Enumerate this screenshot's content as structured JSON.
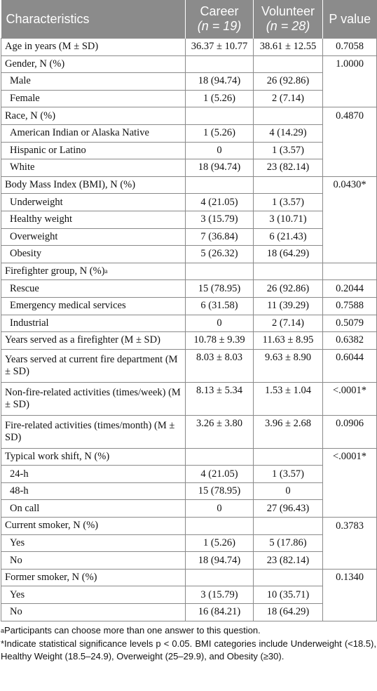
{
  "header": {
    "characteristics": "Characteristics",
    "career": "Career",
    "career_n": "(n = 19)",
    "volunteer": "Volunteer",
    "volunteer_n": "(n = 28)",
    "pvalue": "P value"
  },
  "rows": {
    "age": {
      "label": "Age in years (M ± SD)",
      "career": "36.37 ± 10.77",
      "volunteer": "38.61 ± 12.55",
      "p": "0.7058"
    },
    "gender": {
      "label": "Gender, N (%)",
      "p": "1.0000"
    },
    "male": {
      "label": "Male",
      "career": "18 (94.74)",
      "volunteer": "26 (92.86)"
    },
    "female": {
      "label": "Female",
      "career": "1 (5.26)",
      "volunteer": "2 (7.14)"
    },
    "race": {
      "label": "Race, N (%)",
      "p": "0.4870"
    },
    "aian": {
      "label": "American Indian or Alaska Native",
      "career": "1 (5.26)",
      "volunteer": "4 (14.29)"
    },
    "hispanic": {
      "label": "Hispanic or Latino",
      "career": "0",
      "volunteer": "1 (3.57)"
    },
    "white": {
      "label": "White",
      "career": "18 (94.74)",
      "volunteer": "23 (82.14)"
    },
    "bmi": {
      "label": "Body Mass Index (BMI), N (%)",
      "p": "0.0430*"
    },
    "underweight": {
      "label": "Underweight",
      "career": "4 (21.05)",
      "volunteer": "1 (3.57)"
    },
    "healthy": {
      "label": "Healthy weight",
      "career": "3 (15.79)",
      "volunteer": "3 (10.71)"
    },
    "overweight": {
      "label": "Overweight",
      "career": "7 (36.84)",
      "volunteer": "6 (21.43)"
    },
    "obesity": {
      "label": "Obesity",
      "career": "5 (26.32)",
      "volunteer": "18 (64.29)"
    },
    "group": {
      "label": "Firefighter group, N (%)",
      "sup": "a"
    },
    "rescue": {
      "label": "Rescue",
      "career": "15 (78.95)",
      "volunteer": "26 (92.86)",
      "p": "0.2044"
    },
    "ems": {
      "label": "Emergency medical services",
      "career": "6 (31.58)",
      "volunteer": "11 (39.29)",
      "p": "0.7588"
    },
    "industrial": {
      "label": "Industrial",
      "career": "0",
      "volunteer": "2 (7.14)",
      "p": "0.5079"
    },
    "years_ff": {
      "label": "Years served as a firefighter (M ± SD)",
      "career": "10.78 ± 9.39",
      "volunteer": "11.63 ± 8.95",
      "p": "0.6382"
    },
    "years_dept": {
      "label": "Years served at current fire department (M ± SD)",
      "career": "8.03 ± 8.03",
      "volunteer": "9.63 ± 8.90",
      "p": "0.6044"
    },
    "nonfire": {
      "label": "Non-fire-related activities (times/week) (M ± SD)",
      "career": "8.13 ± 5.34",
      "volunteer": "1.53 ± 1.04",
      "p": "<.0001*"
    },
    "fire": {
      "label": "Fire-related activities (times/month) (M ± SD)",
      "career": "3.26 ± 3.80",
      "volunteer": "3.96 ± 2.68",
      "p": "0.0906"
    },
    "shift": {
      "label": "Typical work shift, N (%)",
      "p": "<.0001*"
    },
    "h24": {
      "label": "24-h",
      "career": "4 (21.05)",
      "volunteer": "1 (3.57)"
    },
    "h48": {
      "label": "48-h",
      "career": "15 (78.95)",
      "volunteer": "0"
    },
    "oncall": {
      "label": "On call",
      "career": "0",
      "volunteer": "27 (96.43)"
    },
    "current": {
      "label": "Current smoker, N (%)",
      "p": "0.3783"
    },
    "cur_yes": {
      "label": "Yes",
      "career": "1 (5.26)",
      "volunteer": "5 (17.86)"
    },
    "cur_no": {
      "label": "No",
      "career": "18 (94.74)",
      "volunteer": "23 (82.14)"
    },
    "former": {
      "label": "Former smoker, N (%)",
      "p": "0.1340"
    },
    "for_yes": {
      "label": "Yes",
      "career": "3 (15.79)",
      "volunteer": "10 (35.71)"
    },
    "for_no": {
      "label": "No",
      "career": "16 (84.21)",
      "volunteer": "18 (64.29)"
    }
  },
  "notes": {
    "a_mark": "a",
    "a": "Participants can choose more than one answer to this question.",
    "star": "*Indicate statistical significance levels p < 0.05. BMI categories include Underweight (<18.5), Healthy Weight (18.5–24.9), Overweight (25–29.9), and Obesity (≥30)."
  }
}
